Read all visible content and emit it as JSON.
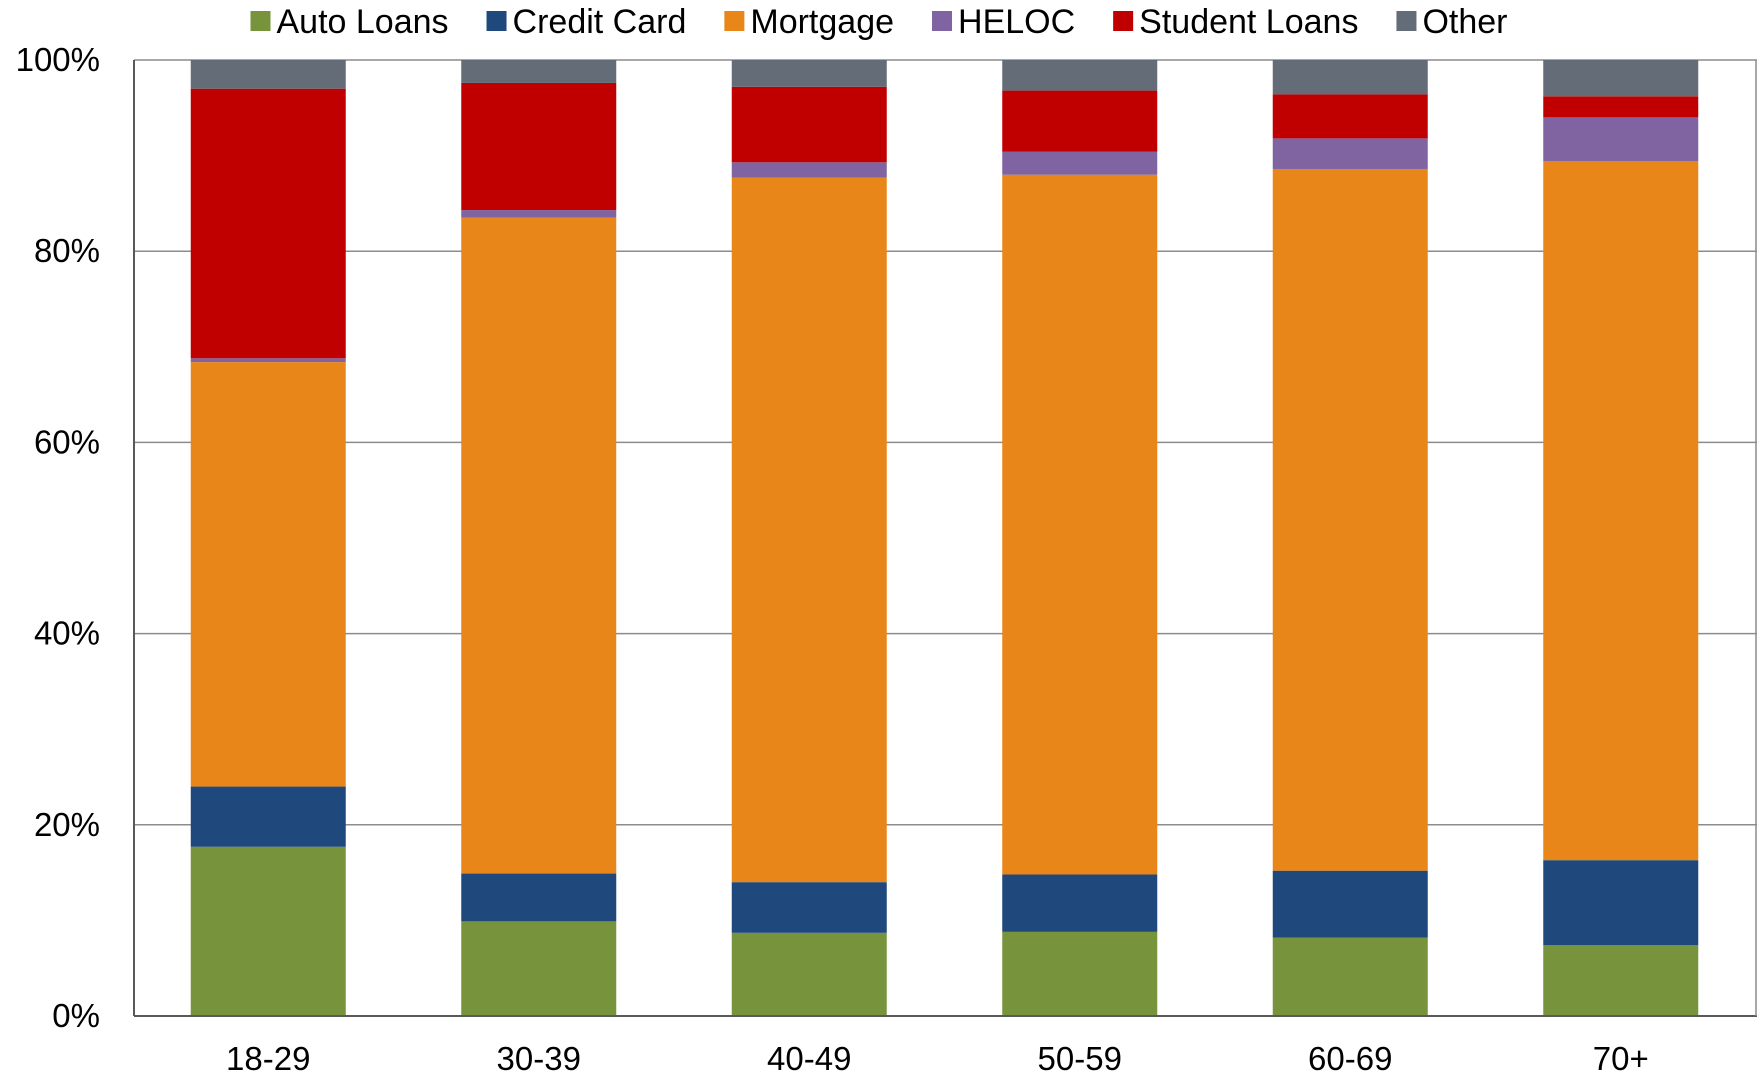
{
  "chart_data": {
    "type": "bar",
    "stacked": true,
    "categories": [
      "18-29",
      "30-39",
      "40-49",
      "50-59",
      "60-69",
      "70+"
    ],
    "series": [
      {
        "name": "Auto Loans",
        "color": "#77933C",
        "values": [
          17.7,
          9.9,
          8.7,
          8.8,
          8.2,
          7.4
        ]
      },
      {
        "name": "Credit Card",
        "color": "#1F497D",
        "values": [
          6.3,
          5.0,
          5.3,
          6.0,
          7.0,
          8.9
        ]
      },
      {
        "name": "Mortgage",
        "color": "#E8861A",
        "values": [
          44.4,
          68.6,
          73.7,
          73.2,
          73.4,
          73.1
        ]
      },
      {
        "name": "HELOC",
        "color": "#8064A2",
        "values": [
          0.4,
          0.8,
          1.6,
          2.4,
          3.2,
          4.6
        ]
      },
      {
        "name": "Student Loans",
        "color": "#C00000",
        "values": [
          28.2,
          13.3,
          7.9,
          6.4,
          4.6,
          2.2
        ]
      },
      {
        "name": "Other",
        "color": "#636C77",
        "values": [
          3.0,
          2.4,
          2.8,
          3.2,
          3.6,
          3.8
        ]
      }
    ],
    "y_ticks": [
      "0%",
      "20%",
      "40%",
      "60%",
      "80%",
      "100%"
    ],
    "ylim": [
      0,
      100
    ],
    "grid": true,
    "legend_position": "top",
    "title": "",
    "xlabel": "",
    "ylabel": ""
  }
}
